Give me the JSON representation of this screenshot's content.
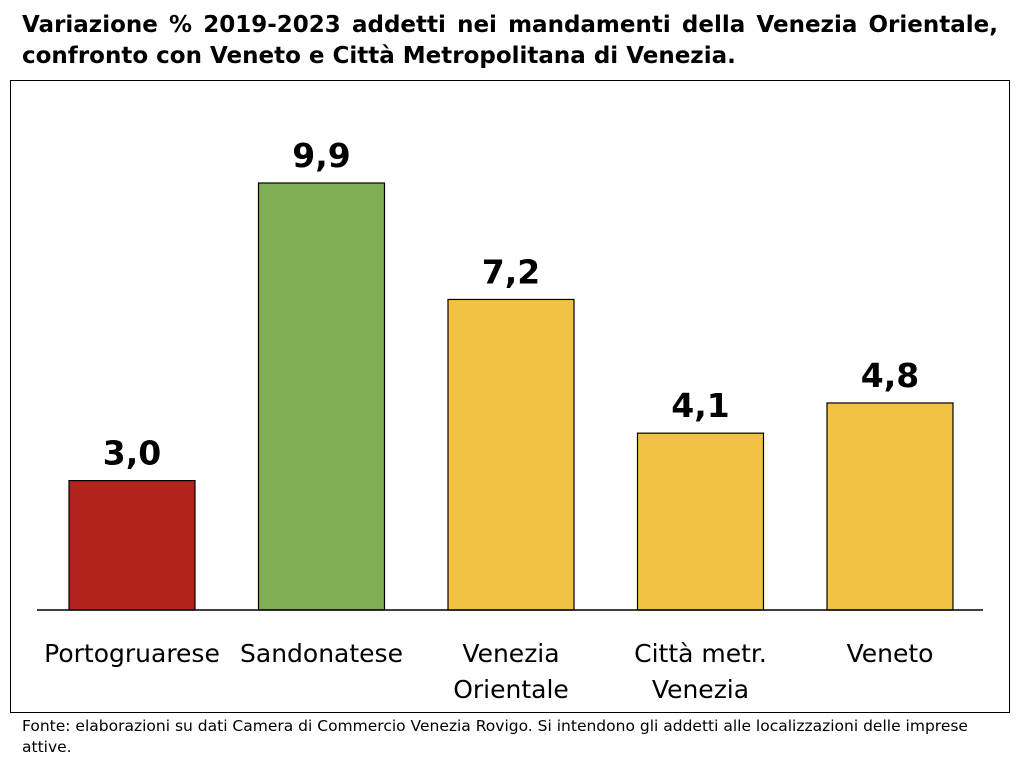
{
  "title": "Variazione % 2019-2023 addetti nei mandamenti della Venezia Orientale, confronto con Veneto e Città Metropolitana di Venezia.",
  "source": "Fonte: elaborazioni su dati Camera di Commercio Venezia Rovigo. Si intendono gli addetti alle localizzazioni delle imprese attive.",
  "chart_data": {
    "type": "bar",
    "categories": [
      "Portogruarese",
      "Sandonatese",
      "Venezia Orientale",
      "Città metr. Venezia",
      "Veneto"
    ],
    "category_lines": [
      [
        "Portogruarese"
      ],
      [
        "Sandonatese"
      ],
      [
        "Venezia",
        "Orientale"
      ],
      [
        "Città metr.",
        "Venezia"
      ],
      [
        "Veneto"
      ]
    ],
    "values": [
      3.0,
      9.9,
      7.2,
      4.1,
      4.8
    ],
    "value_labels": [
      "3,0",
      "9,9",
      "7,2",
      "4,1",
      "4,8"
    ],
    "colors": [
      "#b2241b",
      "#7fae55",
      "#f3c244",
      "#f3c244",
      "#f3c244"
    ],
    "ylim": [
      0,
      11
    ],
    "grid": false,
    "legend": "none"
  }
}
